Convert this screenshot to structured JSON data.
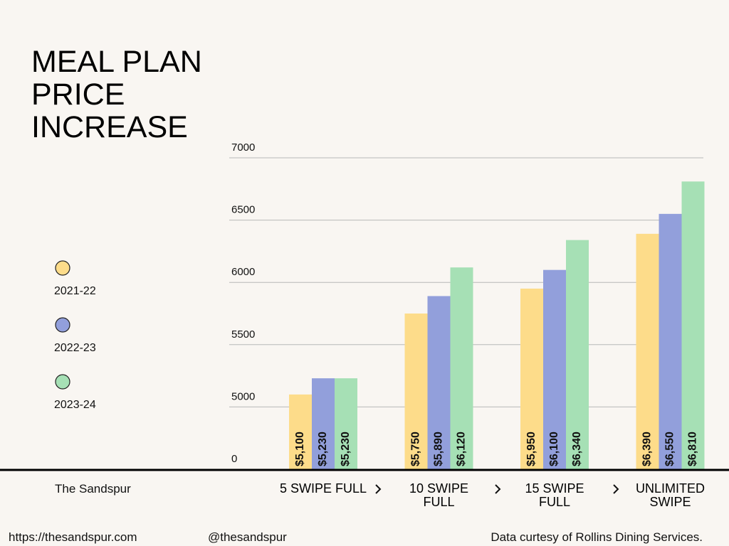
{
  "chart_data": {
    "type": "bar",
    "title": "MEAL PLAN PRICE INCREASE",
    "categories": [
      "5 SWIPE FULL",
      "10 SWIPE FULL",
      "15 SWIPE FULL",
      "UNLIMITED SWIPE"
    ],
    "series": [
      {
        "name": "2021-22",
        "color": "#fddc8a",
        "values": [
          5100,
          5750,
          5950,
          6390
        ],
        "value_labels": [
          "$5,100",
          "$5,750",
          "$5,950",
          "$6,390"
        ]
      },
      {
        "name": "2022-23",
        "color": "#929fdb",
        "values": [
          5230,
          5890,
          6100,
          6550
        ],
        "value_labels": [
          "$5,230",
          "$5,890",
          "$6,100",
          "$6,550"
        ]
      },
      {
        "name": "2023-24",
        "color": "#a6e0b5",
        "values": [
          5230,
          6120,
          6340,
          6810
        ],
        "value_labels": [
          "$5,230",
          "$6,120",
          "$6,340",
          "$6,810"
        ]
      }
    ],
    "ylim": [
      0,
      7000
    ],
    "yticks": [
      0,
      5000,
      5500,
      6000,
      6500,
      7000
    ],
    "grid": true,
    "legend": "left",
    "publisher": "The Sandspur",
    "website": "https://thesandspur.com",
    "handle": "@thesandspur",
    "source": "Data curtesy of Rollins Dining Services."
  }
}
